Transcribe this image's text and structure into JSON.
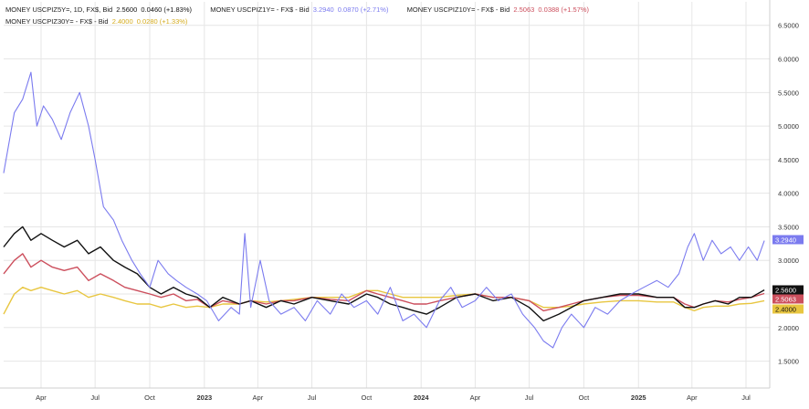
{
  "legend": {
    "row1": {
      "s5_name": "MONEY USCPIZ5Y=, 1D, FX$, Bid",
      "s5_value": "2.5600",
      "s5_change": "0.0460 (+1.83%)",
      "s1_name": "MONEY USCPIZ1Y= - FX$ - Bid",
      "s1_value": "3.2940",
      "s1_change": "0.0870 (+2.71%)",
      "s10_name": "MONEY USCPIZ10Y= - FX$ - Bid",
      "s10_value": "2.5063",
      "s10_change": "0.0388 (+1.57%)"
    },
    "row2": {
      "s30_name": "MONEY USCPIZ30Y= - FX$ - Bid",
      "s30_value": "2.4000",
      "s30_change": "0.0280 (+1.33%)"
    }
  },
  "colors": {
    "s1": "#7b7bef",
    "s5": "#111111",
    "s10": "#cc4f5d",
    "s30": "#e8c640",
    "grid": "#e6e6e6"
  },
  "chart_data": {
    "type": "line",
    "x_tick_labels": [
      "Apr",
      "Jul",
      "Oct",
      "2023",
      "Apr",
      "Jul",
      "Oct",
      "2024",
      "Apr",
      "Jul",
      "Oct",
      "2025",
      "Apr",
      "Jul"
    ],
    "x_tick_bold": [
      false,
      false,
      false,
      true,
      false,
      false,
      false,
      true,
      false,
      false,
      false,
      true,
      false,
      false
    ],
    "y_tick_labels": [
      "1.5000",
      "2.0000",
      "2.5000",
      "3.0000",
      "3.5000",
      "4.0000",
      "4.5000",
      "5.0000",
      "5.5000",
      "6.0000",
      "6.5000"
    ],
    "ylim": [
      1.1,
      6.85
    ],
    "xlim": [
      "2022-01-28",
      "2025-08-10"
    ],
    "grid": true,
    "last_value_labels": [
      {
        "series": "MONEY USCPIZ1Y=",
        "text": "3.2940",
        "value": 3.294,
        "bg": "#7b7bef"
      },
      {
        "series": "MONEY USCPIZ5Y=",
        "text": "2.5600",
        "value": 2.56,
        "bg": "#111111"
      },
      {
        "series": "MONEY USCPIZ10Y=",
        "text": "2.5063",
        "value": 2.5063,
        "bg": "#cc4f5d"
      },
      {
        "series": "MONEY USCPIZ30Y=",
        "text": "2.4000",
        "value": 2.4,
        "bg": "#e8c640"
      }
    ],
    "series": [
      {
        "name": "MONEY USCPIZ1Y=",
        "color": "#7b7bef",
        "x": [
          "2022-01-28",
          "2022-02-15",
          "2022-03-01",
          "2022-03-15",
          "2022-03-25",
          "2022-04-05",
          "2022-04-20",
          "2022-05-05",
          "2022-05-20",
          "2022-06-05",
          "2022-06-20",
          "2022-07-01",
          "2022-07-15",
          "2022-08-01",
          "2022-08-15",
          "2022-09-01",
          "2022-09-15",
          "2022-10-01",
          "2022-10-15",
          "2022-11-01",
          "2022-11-15",
          "2022-12-01",
          "2022-12-20",
          "2023-01-05",
          "2023-01-25",
          "2023-02-15",
          "2023-03-01",
          "2023-03-10",
          "2023-03-20",
          "2023-04-05",
          "2023-04-20",
          "2023-05-10",
          "2023-06-01",
          "2023-06-20",
          "2023-07-10",
          "2023-08-01",
          "2023-08-20",
          "2023-09-10",
          "2023-10-01",
          "2023-10-20",
          "2023-11-10",
          "2023-12-01",
          "2023-12-20",
          "2024-01-10",
          "2024-02-01",
          "2024-02-20",
          "2024-03-10",
          "2024-04-01",
          "2024-04-20",
          "2024-05-10",
          "2024-06-01",
          "2024-06-20",
          "2024-07-10",
          "2024-07-25",
          "2024-08-10",
          "2024-08-25",
          "2024-09-10",
          "2024-10-01",
          "2024-10-20",
          "2024-11-10",
          "2024-12-01",
          "2024-12-20",
          "2025-01-10",
          "2025-02-01",
          "2025-02-20",
          "2025-03-10",
          "2025-03-25",
          "2025-04-05",
          "2025-04-20",
          "2025-05-05",
          "2025-05-20",
          "2025-06-05",
          "2025-06-20",
          "2025-07-05",
          "2025-07-20",
          "2025-08-01"
        ],
        "y": [
          4.3,
          5.2,
          5.4,
          5.8,
          5.0,
          5.3,
          5.1,
          4.8,
          5.2,
          5.5,
          5.0,
          4.5,
          3.8,
          3.6,
          3.3,
          3.0,
          2.8,
          2.6,
          3.0,
          2.8,
          2.7,
          2.6,
          2.5,
          2.4,
          2.1,
          2.3,
          2.2,
          3.4,
          2.3,
          3.0,
          2.4,
          2.2,
          2.3,
          2.1,
          2.4,
          2.2,
          2.5,
          2.3,
          2.4,
          2.2,
          2.6,
          2.1,
          2.2,
          2.0,
          2.4,
          2.6,
          2.3,
          2.4,
          2.6,
          2.4,
          2.5,
          2.2,
          2.0,
          1.8,
          1.7,
          2.0,
          2.2,
          2.0,
          2.3,
          2.2,
          2.4,
          2.5,
          2.6,
          2.7,
          2.6,
          2.8,
          3.2,
          3.4,
          3.0,
          3.3,
          3.1,
          3.2,
          3.0,
          3.2,
          3.0,
          3.294
        ]
      },
      {
        "name": "MONEY USCPIZ5Y=",
        "color": "#111111",
        "x": [
          "2022-01-28",
          "2022-02-15",
          "2022-03-01",
          "2022-03-15",
          "2022-04-01",
          "2022-04-20",
          "2022-05-10",
          "2022-06-01",
          "2022-06-20",
          "2022-07-10",
          "2022-08-01",
          "2022-08-20",
          "2022-09-10",
          "2022-10-01",
          "2022-10-20",
          "2022-11-10",
          "2022-12-01",
          "2022-12-20",
          "2023-01-10",
          "2023-02-01",
          "2023-03-01",
          "2023-03-20",
          "2023-04-15",
          "2023-05-10",
          "2023-06-01",
          "2023-07-01",
          "2023-08-01",
          "2023-09-01",
          "2023-10-01",
          "2023-10-20",
          "2023-11-10",
          "2023-12-01",
          "2023-12-20",
          "2024-01-10",
          "2024-02-01",
          "2024-03-01",
          "2024-04-01",
          "2024-05-01",
          "2024-06-01",
          "2024-07-01",
          "2024-07-25",
          "2024-08-20",
          "2024-09-10",
          "2024-10-01",
          "2024-11-01",
          "2024-12-01",
          "2025-01-01",
          "2025-02-01",
          "2025-03-01",
          "2025-03-20",
          "2025-04-05",
          "2025-04-20",
          "2025-05-10",
          "2025-06-01",
          "2025-06-20",
          "2025-07-10",
          "2025-08-01"
        ],
        "y": [
          3.2,
          3.4,
          3.5,
          3.3,
          3.4,
          3.3,
          3.2,
          3.3,
          3.1,
          3.2,
          3.0,
          2.9,
          2.8,
          2.6,
          2.5,
          2.6,
          2.5,
          2.45,
          2.3,
          2.45,
          2.35,
          2.4,
          2.3,
          2.4,
          2.35,
          2.45,
          2.4,
          2.35,
          2.5,
          2.45,
          2.35,
          2.3,
          2.25,
          2.2,
          2.3,
          2.45,
          2.5,
          2.4,
          2.45,
          2.3,
          2.1,
          2.2,
          2.3,
          2.4,
          2.45,
          2.5,
          2.5,
          2.45,
          2.45,
          2.3,
          2.3,
          2.35,
          2.4,
          2.35,
          2.45,
          2.45,
          2.56
        ]
      },
      {
        "name": "MONEY USCPIZ10Y=",
        "color": "#cc4f5d",
        "x": [
          "2022-01-28",
          "2022-02-15",
          "2022-03-01",
          "2022-03-15",
          "2022-04-01",
          "2022-04-20",
          "2022-05-10",
          "2022-06-01",
          "2022-06-20",
          "2022-07-10",
          "2022-08-01",
          "2022-08-20",
          "2022-09-10",
          "2022-10-01",
          "2022-10-20",
          "2022-11-10",
          "2022-12-01",
          "2022-12-20",
          "2023-01-10",
          "2023-02-01",
          "2023-03-01",
          "2023-03-20",
          "2023-04-15",
          "2023-05-10",
          "2023-06-01",
          "2023-07-01",
          "2023-08-01",
          "2023-09-01",
          "2023-10-01",
          "2023-10-20",
          "2023-11-10",
          "2023-12-01",
          "2023-12-20",
          "2024-01-10",
          "2024-02-01",
          "2024-03-01",
          "2024-04-01",
          "2024-05-01",
          "2024-06-01",
          "2024-07-01",
          "2024-07-25",
          "2024-08-20",
          "2024-09-10",
          "2024-10-01",
          "2024-11-01",
          "2024-12-01",
          "2025-01-01",
          "2025-02-01",
          "2025-03-01",
          "2025-03-20",
          "2025-04-05",
          "2025-04-20",
          "2025-05-10",
          "2025-06-01",
          "2025-06-20",
          "2025-07-10",
          "2025-08-01"
        ],
        "y": [
          2.8,
          3.0,
          3.1,
          2.9,
          3.0,
          2.9,
          2.85,
          2.9,
          2.7,
          2.8,
          2.7,
          2.6,
          2.55,
          2.5,
          2.45,
          2.5,
          2.4,
          2.42,
          2.3,
          2.4,
          2.35,
          2.4,
          2.35,
          2.4,
          2.4,
          2.45,
          2.42,
          2.4,
          2.55,
          2.5,
          2.45,
          2.4,
          2.35,
          2.35,
          2.4,
          2.45,
          2.5,
          2.45,
          2.45,
          2.4,
          2.25,
          2.3,
          2.35,
          2.4,
          2.45,
          2.48,
          2.48,
          2.45,
          2.45,
          2.35,
          2.3,
          2.35,
          2.4,
          2.38,
          2.42,
          2.45,
          2.5063
        ]
      },
      {
        "name": "MONEY USCPIZ30Y=",
        "color": "#e8c640",
        "x": [
          "2022-01-28",
          "2022-02-15",
          "2022-03-01",
          "2022-03-15",
          "2022-04-01",
          "2022-04-20",
          "2022-05-10",
          "2022-06-01",
          "2022-06-20",
          "2022-07-10",
          "2022-08-01",
          "2022-08-20",
          "2022-09-10",
          "2022-10-01",
          "2022-10-20",
          "2022-11-10",
          "2022-12-01",
          "2022-12-20",
          "2023-01-10",
          "2023-02-01",
          "2023-03-01",
          "2023-03-20",
          "2023-04-15",
          "2023-05-10",
          "2023-06-01",
          "2023-07-01",
          "2023-08-01",
          "2023-09-01",
          "2023-10-01",
          "2023-10-20",
          "2023-11-10",
          "2023-12-01",
          "2023-12-20",
          "2024-01-10",
          "2024-02-01",
          "2024-03-01",
          "2024-04-01",
          "2024-05-01",
          "2024-06-01",
          "2024-07-01",
          "2024-07-25",
          "2024-08-20",
          "2024-09-10",
          "2024-10-01",
          "2024-11-01",
          "2024-12-01",
          "2025-01-01",
          "2025-02-01",
          "2025-03-01",
          "2025-03-20",
          "2025-04-05",
          "2025-04-20",
          "2025-05-10",
          "2025-06-01",
          "2025-06-20",
          "2025-07-10",
          "2025-08-01"
        ],
        "y": [
          2.2,
          2.5,
          2.6,
          2.55,
          2.6,
          2.55,
          2.5,
          2.55,
          2.45,
          2.5,
          2.45,
          2.4,
          2.35,
          2.35,
          2.3,
          2.35,
          2.3,
          2.32,
          2.3,
          2.35,
          2.35,
          2.4,
          2.38,
          2.4,
          2.42,
          2.45,
          2.45,
          2.45,
          2.55,
          2.55,
          2.5,
          2.45,
          2.45,
          2.45,
          2.45,
          2.48,
          2.5,
          2.45,
          2.45,
          2.4,
          2.3,
          2.3,
          2.32,
          2.35,
          2.38,
          2.4,
          2.4,
          2.38,
          2.38,
          2.3,
          2.25,
          2.3,
          2.32,
          2.32,
          2.35,
          2.36,
          2.4
        ]
      }
    ]
  }
}
